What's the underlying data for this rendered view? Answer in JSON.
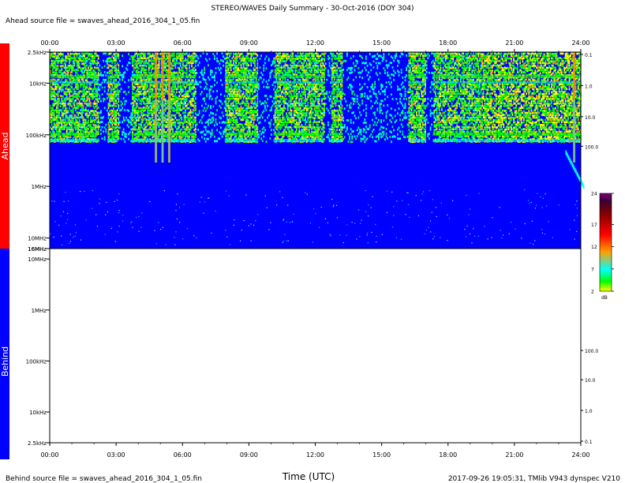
{
  "header": {
    "title": "STEREO/WAVES Daily Summary - 30-Oct-2016 (DOY 304)",
    "ahead_source": "Ahead source file = swaves_ahead_2016_304_1_05.fin"
  },
  "footer": {
    "behind_source": "Behind source file = swaves_ahead_2016_304_1_05.fin",
    "xlabel": "Time (UTC)",
    "stamp": "2017-09-26 19:05:31, TMlib V943 dynspec V210"
  },
  "chart_data": {
    "type": "heatmap",
    "x_ticks": [
      "00:00",
      "03:00",
      "06:00",
      "09:00",
      "12:00",
      "15:00",
      "18:00",
      "21:00",
      "24:00"
    ],
    "x_range_hours": [
      0,
      24
    ],
    "panels": [
      {
        "name": "Ahead",
        "color": "#ff0000",
        "y_scale": "log",
        "y_range_hz": [
          2500,
          16000000
        ],
        "y_ticks_left": [
          "2.5kHz",
          "10kHz",
          "100kHz",
          "1MHz",
          "10MHz",
          "16MHz"
        ],
        "y_tick_values_hz": [
          2500,
          10000,
          100000,
          1000000,
          10000000,
          16000000
        ],
        "y_ticks_right": [
          "0.1",
          "1.0",
          "10.0",
          "100.0"
        ],
        "has_data": true,
        "background_color": "#0000ff",
        "activity_hours": [
          [
            0,
            2.2
          ],
          [
            2.6,
            3.1
          ],
          [
            3.7,
            6.6
          ],
          [
            7.9,
            9.4
          ],
          [
            10.1,
            12.4
          ],
          [
            12.7,
            13.2
          ],
          [
            16.2,
            17.0
          ],
          [
            17.3,
            24
          ]
        ],
        "intense_bursts_hours": [
          4.8,
          5.1,
          5.4,
          23.7
        ],
        "cutoff_hz": 150000
      },
      {
        "name": "Behind",
        "color": "#0000ff",
        "y_scale": "log",
        "y_range_hz": [
          2500,
          16000000
        ],
        "y_ticks_left": [
          "16MHz",
          "10MHz",
          "1MHz",
          "100kHz",
          "10kHz",
          "2.5kHz"
        ],
        "y_ticks_right": [
          "100.0",
          "10.0",
          "1.0",
          "0.1"
        ],
        "has_data": false
      }
    ],
    "colorbar": {
      "ticks": [
        "24",
        "17",
        "12",
        "7",
        "2"
      ],
      "tick_values_db": [
        24,
        17,
        12,
        7,
        2
      ],
      "range_db": [
        2,
        24
      ],
      "unit": "dB",
      "colors": [
        "#ffff00",
        "#00ff00",
        "#00ffff",
        "#ffa000",
        "#ff0000",
        "#8b0000",
        "#3a0030",
        "#7b007b"
      ]
    }
  }
}
